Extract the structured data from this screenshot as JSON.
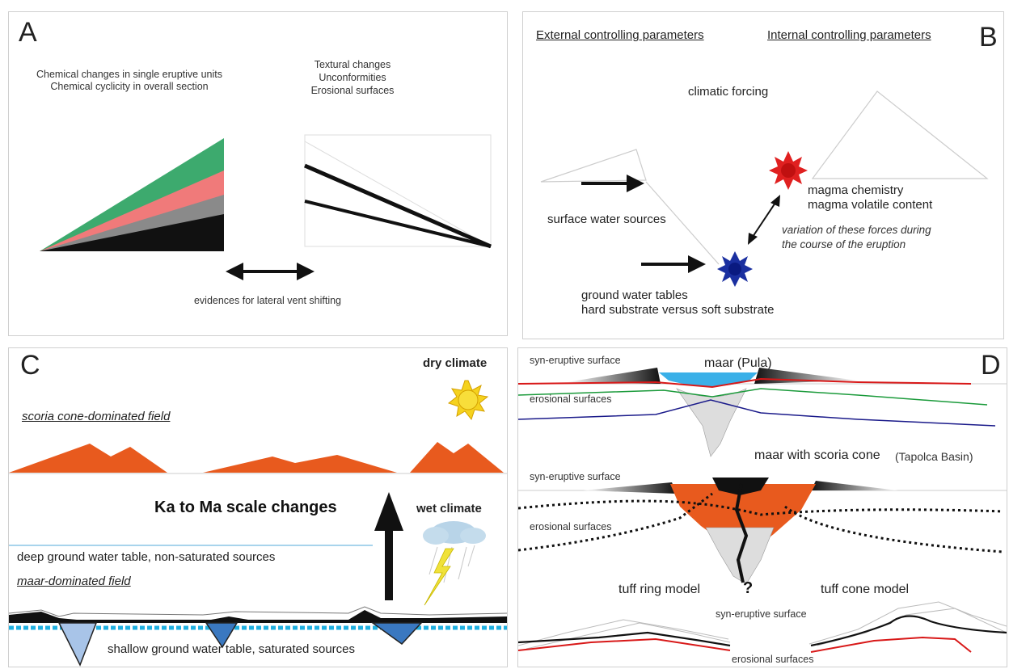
{
  "panelA": {
    "letter": "A",
    "chem_line1": "Chemical changes in single eruptive units",
    "chem_line2": "Chemical cyclicity in overall section",
    "tex_line1": "Textural changes",
    "tex_line2": "Unconformities",
    "tex_line3": "Erosional surfaces",
    "evidence": "evidences for lateral vent shifting",
    "colors": {
      "green": "#3daa6e",
      "red": "#f07a7a",
      "gray": "#888888",
      "black": "#111111"
    }
  },
  "panelB": {
    "letter": "B",
    "external": "External controlling parameters",
    "internal": "Internal controlling parameters",
    "climatic": "climatic forcing",
    "magma1": "magma chemistry",
    "magma2": "magma volatile content",
    "surface_water": "surface water sources",
    "variation1": "variation of these forces during",
    "variation2": "the course of the eruption",
    "ground1": "ground water tables",
    "ground2": "hard substrate versus soft substrate",
    "colors": {
      "red_star": "#e02020",
      "blue_star": "#1a2fa0"
    }
  },
  "panelC": {
    "letter": "C",
    "dry": "dry climate",
    "scoria": "scoria cone-dominated field",
    "ka_ma": "Ka to Ma scale changes",
    "wet": "wet climate",
    "deep": "deep ground water table, non-saturated sources",
    "maar_field": "maar-dominated field",
    "shallow": "shallow ground water table, saturated sources",
    "colors": {
      "cone": "#e85a1e",
      "sun": "#f5d21e",
      "water": "#20b0e0",
      "maar_fill": "#3a78c0"
    }
  },
  "panelD": {
    "letter": "D",
    "syn1": "syn-eruptive surface",
    "maar_pula": "maar (Pula)",
    "eros1": "erosional surfaces",
    "maar_scoria": "maar with scoria cone",
    "tapolca": "(Tapolca Basin)",
    "syn2": "syn-eruptive surface",
    "eros2": "erosional surfaces",
    "tuff_ring": "tuff ring model",
    "question": "?",
    "tuff_cone": "tuff cone model",
    "syn3": "syn-eruptive surface",
    "eros3": "erosional surfaces",
    "colors": {
      "red": "#d81818",
      "green": "#1a9a3a",
      "blue": "#1a1a8a",
      "water": "#3ab0e8",
      "scoria": "#e85a1e"
    }
  }
}
